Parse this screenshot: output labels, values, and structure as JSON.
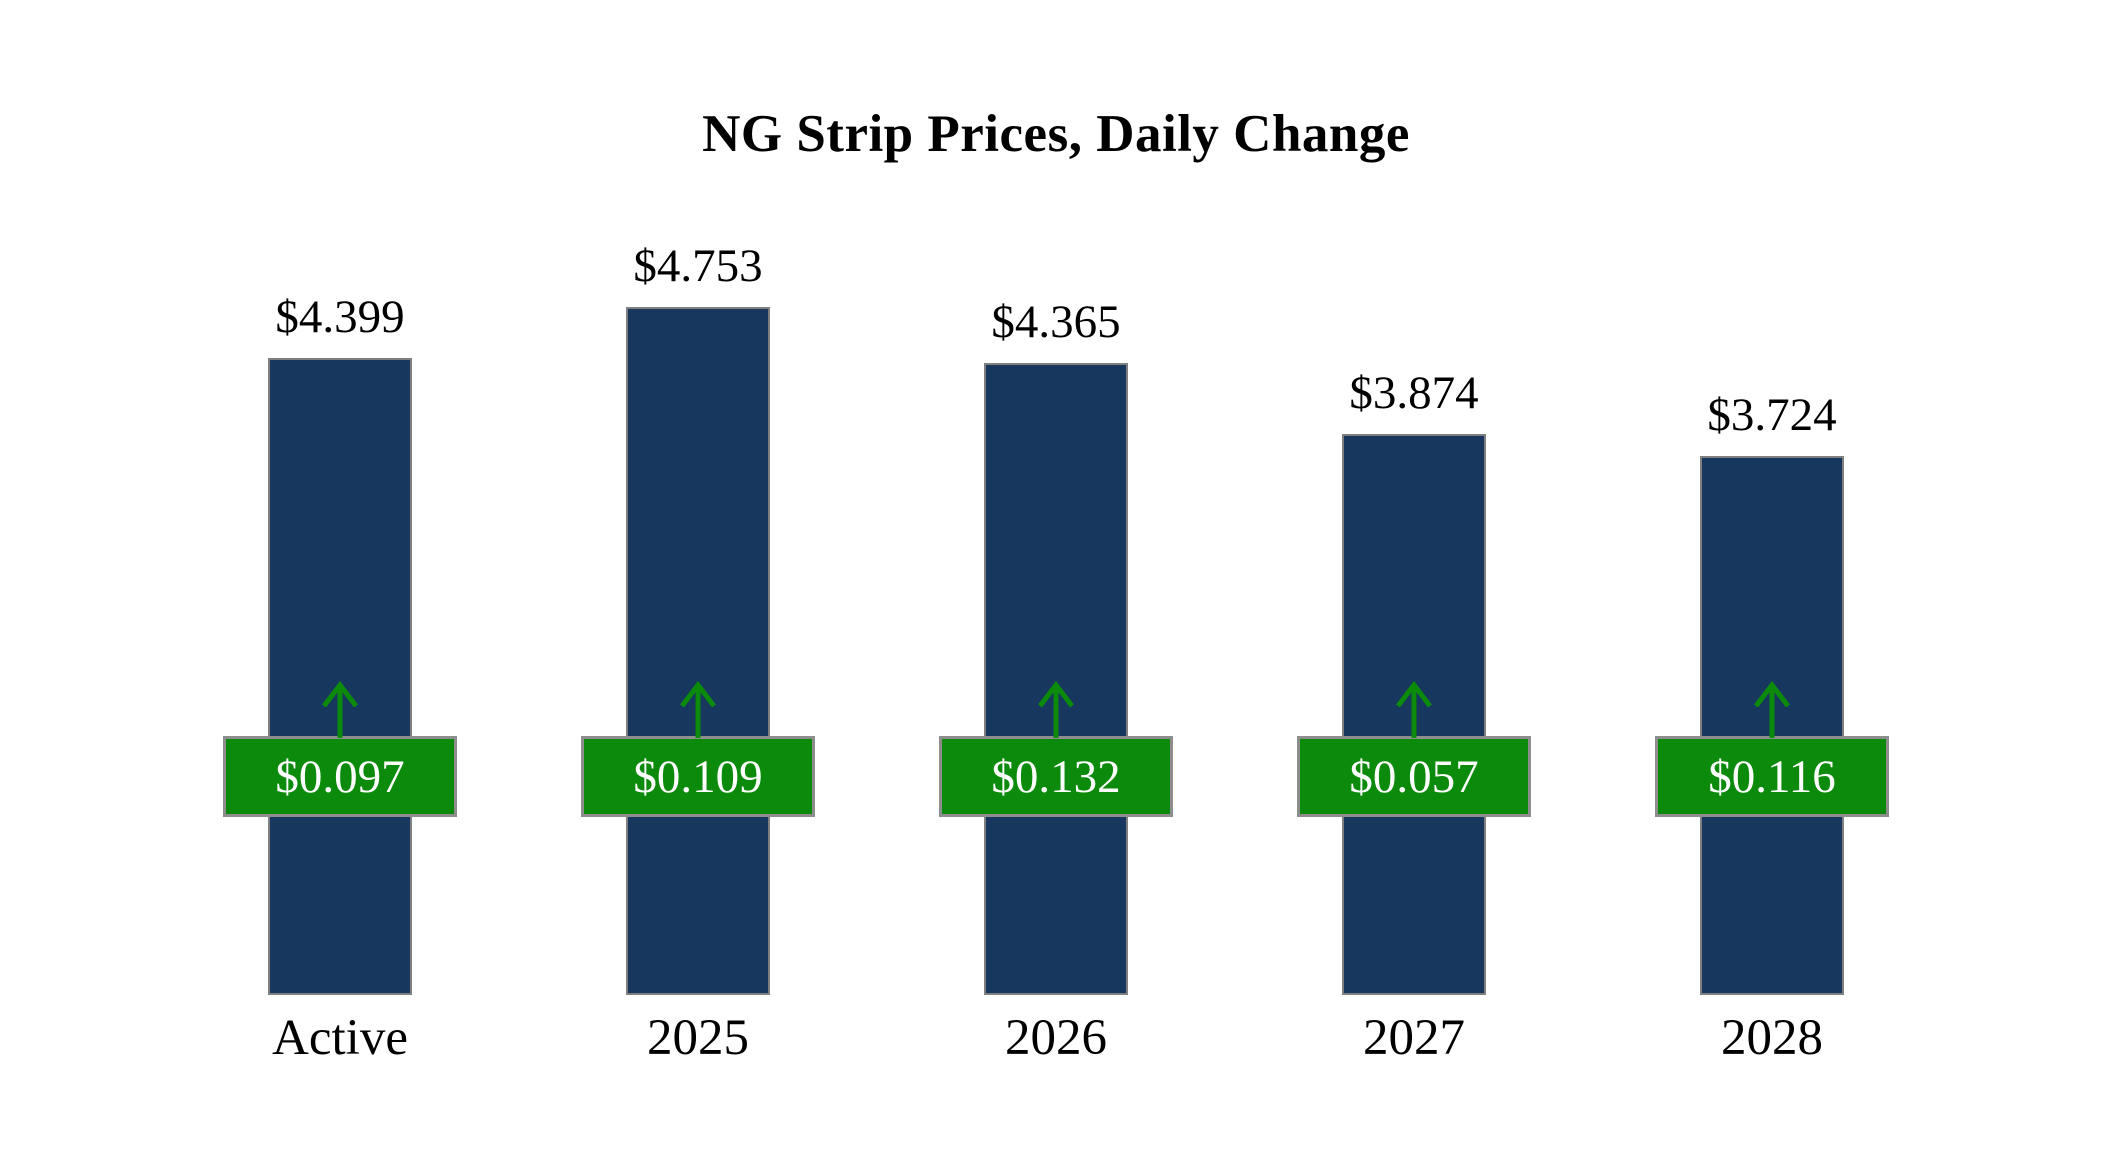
{
  "title": "NG Strip Prices, Daily Change",
  "chart_data": {
    "type": "bar",
    "title": "NG Strip Prices, Daily Change",
    "categories": [
      "Active",
      "2025",
      "2026",
      "2027",
      "2028"
    ],
    "series": [
      {
        "name": "strip_price",
        "values": [
          4.399,
          4.753,
          4.365,
          3.874,
          3.724
        ]
      },
      {
        "name": "daily_change",
        "values": [
          0.097,
          0.109,
          0.132,
          0.057,
          0.116
        ]
      }
    ],
    "bars": [
      {
        "category": "Active",
        "price": 4.399,
        "price_label": "$4.399",
        "change": 0.097,
        "change_label": "$0.097"
      },
      {
        "category": "2025",
        "price": 4.753,
        "price_label": "$4.753",
        "change": 0.109,
        "change_label": "$0.109"
      },
      {
        "category": "2026",
        "price": 4.365,
        "price_label": "$4.365",
        "change": 0.132,
        "change_label": "$0.132"
      },
      {
        "category": "2027",
        "price": 3.874,
        "price_label": "$3.874",
        "change": 0.057,
        "change_label": "$0.057"
      },
      {
        "category": "2028",
        "price": 3.724,
        "price_label": "$3.724",
        "change": 0.116,
        "change_label": "$0.116"
      }
    ],
    "ylim": [
      0,
      4.753
    ],
    "grid": false,
    "legend": "none",
    "colors": {
      "bar_fill": "#17375E",
      "bar_border": "#7F7F7F",
      "badge_fill": "#0B8A0B",
      "badge_border": "#8E8E8E",
      "badge_text": "#FFFFFF",
      "arrow": "#0B8A0B",
      "text": "#000000",
      "background": "#FFFFFF"
    }
  }
}
